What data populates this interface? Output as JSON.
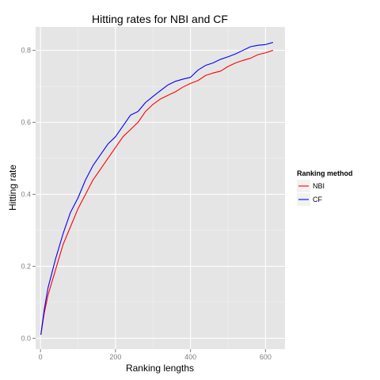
{
  "chart_data": {
    "type": "line",
    "title": "Hitting rates for NBI and CF",
    "xlabel": "Ranking lengths",
    "ylabel": "Hitting rate",
    "xlim": [
      -13,
      652
    ],
    "ylim": [
      -0.03,
      0.865
    ],
    "x_ticks": [
      0,
      200,
      400,
      600
    ],
    "y_ticks": [
      0.0,
      0.2,
      0.4,
      0.6,
      0.8
    ],
    "x_tick_labels": [
      "0",
      "200",
      "400",
      "600"
    ],
    "y_tick_labels": [
      "0.0",
      "0.2",
      "0.4",
      "0.6",
      "0.8"
    ],
    "grid": true,
    "legend": {
      "title": "Ranking method",
      "placement": "right"
    },
    "x": [
      1,
      10,
      20,
      40,
      60,
      80,
      100,
      120,
      140,
      160,
      180,
      200,
      220,
      240,
      260,
      280,
      300,
      320,
      340,
      360,
      380,
      400,
      420,
      440,
      460,
      480,
      500,
      520,
      540,
      560,
      580,
      600,
      620
    ],
    "series": [
      {
        "name": "NBI",
        "color": "#ff0000",
        "values": [
          0.01,
          0.07,
          0.12,
          0.19,
          0.26,
          0.31,
          0.36,
          0.4,
          0.44,
          0.47,
          0.5,
          0.53,
          0.56,
          0.58,
          0.6,
          0.63,
          0.65,
          0.665,
          0.675,
          0.685,
          0.698,
          0.708,
          0.716,
          0.73,
          0.737,
          0.742,
          0.755,
          0.765,
          0.772,
          0.778,
          0.788,
          0.793,
          0.8
        ]
      },
      {
        "name": "CF",
        "color": "#0000ff",
        "values": [
          0.01,
          0.08,
          0.14,
          0.22,
          0.29,
          0.35,
          0.39,
          0.44,
          0.48,
          0.51,
          0.54,
          0.56,
          0.59,
          0.62,
          0.63,
          0.655,
          0.672,
          0.688,
          0.704,
          0.714,
          0.72,
          0.725,
          0.745,
          0.758,
          0.765,
          0.775,
          0.782,
          0.79,
          0.8,
          0.81,
          0.814,
          0.816,
          0.822
        ]
      }
    ]
  }
}
